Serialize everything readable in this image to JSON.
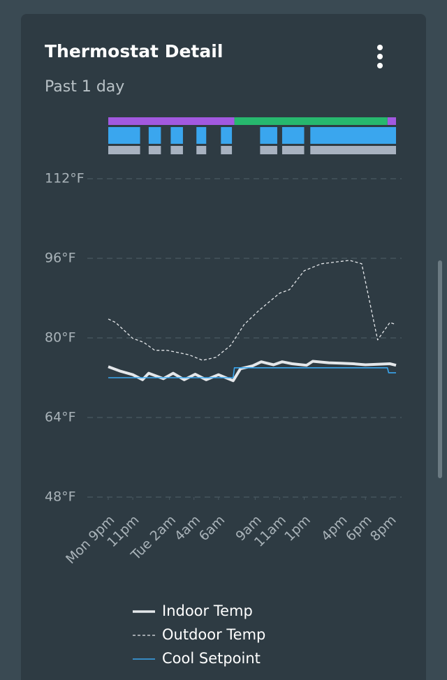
{
  "chart_data": {
    "type": "line",
    "title": "Thermostat Detail",
    "subtitle": "Past 1 day",
    "xlim": [
      0,
      23.5
    ],
    "ylim": [
      48,
      112
    ],
    "yticks": [
      {
        "value": 48,
        "label": "48°F"
      },
      {
        "value": 64,
        "label": "64°F"
      },
      {
        "value": 80,
        "label": "80°F"
      },
      {
        "value": 96,
        "label": "96°F"
      },
      {
        "value": 112,
        "label": "112°F"
      }
    ],
    "xticks": [
      {
        "value": 0,
        "label": "Mon 9pm"
      },
      {
        "value": 2,
        "label": "11pm"
      },
      {
        "value": 5,
        "label": "Tue 2am"
      },
      {
        "value": 7,
        "label": "4am"
      },
      {
        "value": 9,
        "label": "6am"
      },
      {
        "value": 12,
        "label": "9am"
      },
      {
        "value": 14,
        "label": "11am"
      },
      {
        "value": 16,
        "label": "1pm"
      },
      {
        "value": 19,
        "label": "4pm"
      },
      {
        "value": 21,
        "label": "6pm"
      },
      {
        "value": 23,
        "label": "8pm"
      }
    ],
    "grid": true,
    "status_rows": [
      {
        "color": "#a259e0",
        "segments": [
          [
            0,
            10.3
          ],
          [
            22.8,
            23.5
          ]
        ]
      },
      {
        "color": "#27b86e",
        "segments": [
          [
            10.3,
            22.8
          ]
        ]
      },
      {
        "color": "#3aa6ee",
        "segments": [
          [
            0,
            2.6
          ],
          [
            3.3,
            4.3
          ],
          [
            5.1,
            6.1
          ],
          [
            7.2,
            8.0
          ],
          [
            9.2,
            10.1
          ],
          [
            12.4,
            13.8
          ],
          [
            14.2,
            16.0
          ],
          [
            16.5,
            23.5
          ]
        ]
      },
      {
        "color": "#a8b2c0",
        "segments": [
          [
            0,
            2.6
          ],
          [
            3.3,
            4.3
          ],
          [
            5.1,
            6.1
          ],
          [
            7.2,
            8.0
          ],
          [
            9.2,
            10.1
          ],
          [
            12.4,
            13.8
          ],
          [
            14.2,
            16.0
          ],
          [
            16.5,
            23.5
          ]
        ]
      }
    ],
    "series": [
      {
        "name": "Indoor Temp",
        "color": "#e4e7ea",
        "style": "solid",
        "width": 4,
        "x": [
          0,
          1,
          2,
          2.8,
          3.3,
          4.5,
          5.3,
          6.2,
          7.1,
          8,
          9,
          10.2,
          10.8,
          11.8,
          12.5,
          13.5,
          14.2,
          15,
          16.2,
          16.7,
          18,
          19,
          20,
          21,
          22,
          23,
          23.5
        ],
        "values": [
          74.2,
          73.3,
          72.6,
          71.6,
          72.9,
          71.8,
          72.9,
          71.6,
          72.7,
          71.6,
          72.6,
          71.4,
          73.8,
          74.4,
          75.2,
          74.6,
          75.2,
          74.8,
          74.5,
          75.3,
          75.0,
          74.9,
          74.8,
          74.6,
          74.7,
          74.8,
          74.5
        ]
      },
      {
        "name": "Outdoor Temp",
        "color": "#e4e7ea",
        "style": "dashed",
        "width": 1.3,
        "x": [
          0,
          0.6,
          2,
          2.9,
          3.8,
          4.8,
          6.6,
          7.7,
          8.8,
          10,
          11.1,
          12.3,
          14,
          14.8,
          16,
          17.4,
          19.7,
          20.7,
          22,
          23,
          23.5
        ],
        "values": [
          83.8,
          83.1,
          79.9,
          79.1,
          77.5,
          77.5,
          76.6,
          75.5,
          76.1,
          78.5,
          82.7,
          85.5,
          89,
          89.7,
          93.5,
          94.9,
          95.6,
          94.9,
          79.6,
          83.1,
          82.7
        ]
      },
      {
        "name": "Cool Setpoint",
        "color": "#3aa6ee",
        "style": "solid",
        "width": 1.6,
        "x": [
          0,
          10.2,
          10.3,
          22.8,
          22.9,
          23.5
        ],
        "values": [
          72,
          72,
          74,
          74,
          73,
          73
        ]
      }
    ]
  }
}
